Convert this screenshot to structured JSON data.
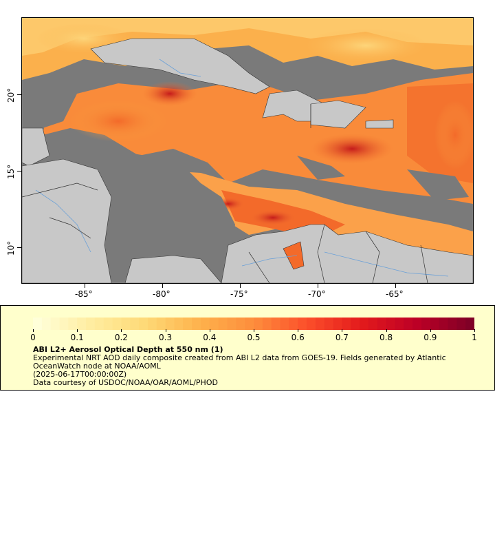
{
  "map": {
    "y_ticks": [
      "20°",
      "15°",
      "10°"
    ],
    "x_ticks": [
      "-85°",
      "-80°",
      "-75°",
      "-70°",
      "-65°"
    ],
    "colors": {
      "ocean_nodata": "#7a7a7a",
      "land": "#c8c8c8",
      "borders": "#333333",
      "rivers": "#6aa0d8"
    }
  },
  "legend": {
    "colorbar_labels": [
      "0",
      "0.1",
      "0.2",
      "0.3",
      "0.4",
      "0.5",
      "0.6",
      "0.7",
      "0.8",
      "0.9",
      "1"
    ],
    "colorbar_colors": [
      "#ffffd9",
      "#ffeda0",
      "#fed976",
      "#feb24c",
      "#fd8d3c",
      "#fc4e2a",
      "#e31a1c",
      "#bd0026",
      "#800026"
    ],
    "title": "ABI L2+ Aerosol Optical Depth at 550 nm (1)",
    "description": "Experimental NRT AOD daily composite created from ABI L2 data from GOES-19. Fields generated by Atlantic OceanWatch node at NOAA/AOML",
    "date": "(2025-06-17T00:00:00Z)",
    "credit": "Data courtesy of USDOC/NOAA/OAR/AOML/PHOD"
  }
}
